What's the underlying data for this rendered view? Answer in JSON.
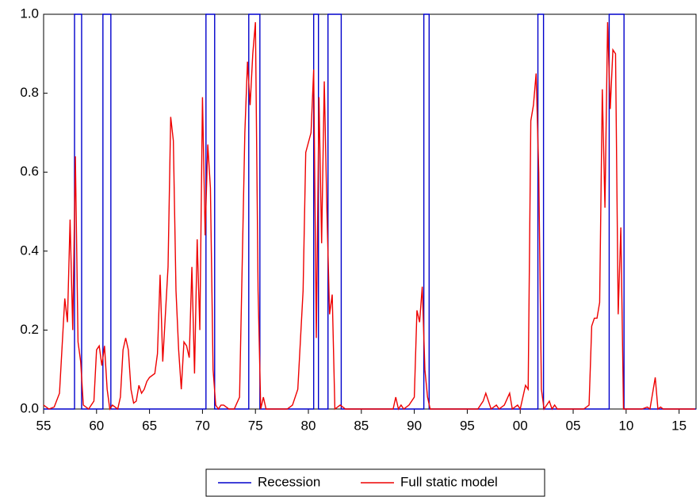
{
  "chart_data": {
    "type": "line",
    "xlim": [
      1955,
      2016.6
    ],
    "xticks": [
      {
        "value": 1955,
        "label": "55"
      },
      {
        "value": 1960,
        "label": "60"
      },
      {
        "value": 1965,
        "label": "65"
      },
      {
        "value": 1970,
        "label": "70"
      },
      {
        "value": 1975,
        "label": "75"
      },
      {
        "value": 1980,
        "label": "80"
      },
      {
        "value": 1985,
        "label": "85"
      },
      {
        "value": 1990,
        "label": "90"
      },
      {
        "value": 1995,
        "label": "95"
      },
      {
        "value": 2000,
        "label": "00"
      },
      {
        "value": 2005,
        "label": "05"
      },
      {
        "value": 2010,
        "label": "10"
      },
      {
        "value": 2015,
        "label": "15"
      }
    ],
    "ylim": [
      0,
      1
    ],
    "yticks": [
      {
        "value": 0,
        "label": "0.0"
      },
      0.2,
      0.4,
      0.6,
      0.8,
      {
        "value": 1,
        "label": "1.0"
      }
    ],
    "grid": false,
    "legend": "bottom",
    "series": [
      {
        "name": "Recession",
        "color": "#0000cc",
        "x": [
          1955,
          1957.92,
          1957.92,
          1958.59,
          1958.59,
          1960.6,
          1960.6,
          1961.35,
          1961.35,
          1970.33,
          1970.33,
          1971.15,
          1971.15,
          1974.37,
          1974.37,
          1975.42,
          1975.42,
          1980.5,
          1980.5,
          1980.95,
          1980.95,
          1981.85,
          1981.85,
          1983.1,
          1983.1,
          1990.9,
          1990.9,
          1991.4,
          1991.4,
          2001.67,
          2001.67,
          2002.2,
          2002.2,
          2008.4,
          2008.4,
          2009.8,
          2009.8,
          2016.6
        ],
        "values": [
          0,
          0,
          1,
          1,
          0,
          0,
          1,
          1,
          0,
          0,
          1,
          1,
          0,
          0,
          1,
          1,
          0,
          0,
          1,
          1,
          0,
          0,
          1,
          1,
          0,
          0,
          1,
          1,
          0,
          0,
          1,
          1,
          0,
          0,
          1,
          1,
          0,
          0
        ]
      },
      {
        "name": "Full static model",
        "color": "#ee0000",
        "x": [
          1955,
          1955.5,
          1956,
          1956.5,
          1957,
          1957.25,
          1957.5,
          1957.75,
          1958,
          1958.25,
          1958.5,
          1958.75,
          1959.25,
          1959.75,
          1960,
          1960.25,
          1960.5,
          1960.75,
          1961,
          1961.25,
          1961.5,
          1962,
          1962.25,
          1962.5,
          1962.75,
          1963,
          1963.25,
          1963.5,
          1963.75,
          1964,
          1964.25,
          1964.5,
          1964.75,
          1965,
          1965.5,
          1965.75,
          1966,
          1966.25,
          1966.75,
          1967,
          1967.25,
          1967.5,
          1967.75,
          1968,
          1968.25,
          1968.5,
          1968.75,
          1969,
          1969.25,
          1969.5,
          1969.75,
          1970,
          1970.25,
          1970.5,
          1970.75,
          1971,
          1971.25,
          1971.5,
          1971.75,
          1972,
          1972.5,
          1973,
          1973.5,
          1974,
          1974.25,
          1974.5,
          1974.75,
          1975,
          1975.25,
          1975.5,
          1975.75,
          1976,
          1977,
          1978,
          1978.5,
          1979,
          1979.5,
          1979.75,
          1980.25,
          1980.5,
          1980.75,
          1981,
          1981.25,
          1981.5,
          1981.75,
          1982,
          1982.25,
          1982.5,
          1983,
          1983.5,
          1985,
          1987,
          1988,
          1988.25,
          1988.5,
          1988.75,
          1989,
          1989.5,
          1990,
          1990.25,
          1990.5,
          1990.75,
          1991,
          1991.25,
          1991.5,
          1992,
          1995,
          1996,
          1996.5,
          1996.75,
          1997.25,
          1997.75,
          1998,
          1998.5,
          1999,
          1999.25,
          1999.75,
          2000,
          2000.5,
          2000.75,
          2001,
          2001.25,
          2001.5,
          2001.75,
          2002,
          2002.25,
          2002.75,
          2003,
          2003.25,
          2003.5,
          2005,
          2006,
          2006.5,
          2006.75,
          2007,
          2007.25,
          2007.5,
          2007.75,
          2008,
          2008.25,
          2008.5,
          2008.75,
          2009,
          2009.25,
          2009.5,
          2009.75,
          2010,
          2011,
          2011.5,
          2012,
          2012.25,
          2012.75,
          2013,
          2013.25,
          2013.5,
          2014,
          2015,
          2016,
          2016.5
        ],
        "values": [
          0.01,
          0.0,
          0.005,
          0.04,
          0.28,
          0.22,
          0.48,
          0.2,
          0.64,
          0.17,
          0.12,
          0.01,
          0.0,
          0.02,
          0.15,
          0.16,
          0.11,
          0.16,
          0.05,
          0.0,
          0.01,
          0.0,
          0.03,
          0.15,
          0.18,
          0.15,
          0.05,
          0.015,
          0.02,
          0.06,
          0.04,
          0.05,
          0.07,
          0.08,
          0.09,
          0.14,
          0.34,
          0.12,
          0.36,
          0.74,
          0.68,
          0.3,
          0.15,
          0.05,
          0.17,
          0.16,
          0.13,
          0.36,
          0.09,
          0.43,
          0.2,
          0.79,
          0.44,
          0.67,
          0.56,
          0.1,
          0.01,
          0.0,
          0.01,
          0.01,
          0.0,
          0.0,
          0.03,
          0.7,
          0.88,
          0.77,
          0.9,
          0.98,
          0.3,
          0.0,
          0.03,
          0.0,
          0.0,
          0.0,
          0.01,
          0.05,
          0.3,
          0.65,
          0.7,
          0.86,
          0.18,
          0.79,
          0.42,
          0.83,
          0.5,
          0.24,
          0.29,
          0.0,
          0.01,
          0.0,
          0.0,
          0.0,
          0.0,
          0.03,
          0.0,
          0.01,
          0.0,
          0.01,
          0.03,
          0.25,
          0.22,
          0.31,
          0.1,
          0.03,
          0.0,
          0.0,
          0.0,
          0.0,
          0.02,
          0.04,
          0.0,
          0.01,
          0.0,
          0.01,
          0.04,
          0.0,
          0.01,
          0.0,
          0.06,
          0.05,
          0.73,
          0.77,
          0.85,
          0.6,
          0.05,
          0.0,
          0.02,
          0.0,
          0.01,
          0.0,
          0.0,
          0.0,
          0.01,
          0.21,
          0.23,
          0.23,
          0.27,
          0.81,
          0.51,
          0.98,
          0.76,
          0.91,
          0.9,
          0.24,
          0.46,
          0.0,
          0.0,
          0.0,
          0.0,
          0.005,
          0.0,
          0.08,
          0.0,
          0.005,
          0.0,
          0.0,
          0.0,
          0.0,
          0.0
        ]
      }
    ]
  }
}
